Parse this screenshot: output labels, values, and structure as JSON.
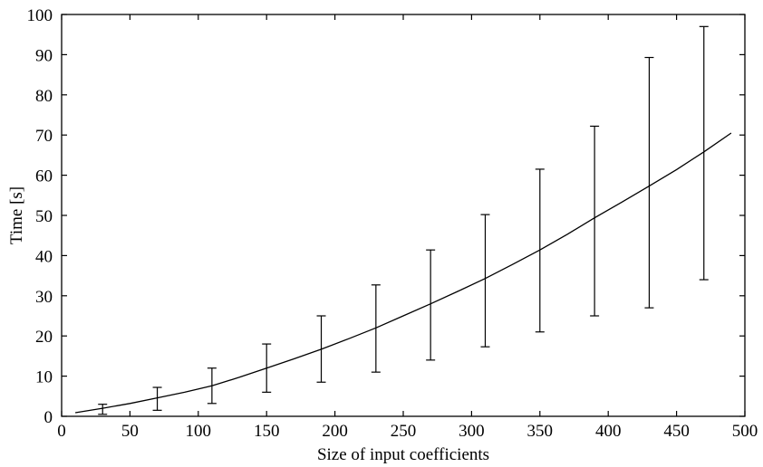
{
  "chart_data": {
    "type": "line",
    "xlabel": "Size of input coefficients",
    "ylabel": "Time [s]",
    "xlim": [
      0,
      500
    ],
    "ylim": [
      0,
      100
    ],
    "xticks": [
      0,
      50,
      100,
      150,
      200,
      250,
      300,
      350,
      400,
      450,
      500
    ],
    "yticks": [
      0,
      10,
      20,
      30,
      40,
      50,
      60,
      70,
      80,
      90,
      100
    ],
    "grid": false,
    "series": [
      {
        "kind": "curve",
        "x": [
          10,
          30,
          50,
          70,
          90,
          110,
          130,
          150,
          170,
          190,
          210,
          230,
          250,
          270,
          290,
          310,
          330,
          350,
          370,
          390,
          410,
          430,
          450,
          470,
          490
        ],
        "y": [
          0.9,
          2.0,
          3.2,
          4.6,
          6.0,
          7.6,
          9.7,
          12.0,
          14.3,
          16.7,
          19.3,
          22.0,
          25.0,
          28.0,
          31.1,
          34.3,
          37.8,
          41.4,
          45.3,
          49.4,
          53.3,
          57.3,
          61.4,
          65.8,
          70.5
        ]
      },
      {
        "kind": "errorbars",
        "x": [
          30,
          70,
          110,
          150,
          190,
          230,
          270,
          310,
          350,
          390,
          430,
          470
        ],
        "low": [
          0.5,
          1.5,
          3.2,
          6.0,
          8.5,
          11.0,
          14.0,
          17.3,
          21.0,
          25.0,
          27.0,
          34.0
        ],
        "high": [
          3.0,
          7.2,
          12.0,
          18.0,
          25.0,
          32.7,
          41.4,
          50.2,
          61.5,
          72.2,
          89.3,
          97.0
        ]
      }
    ]
  }
}
